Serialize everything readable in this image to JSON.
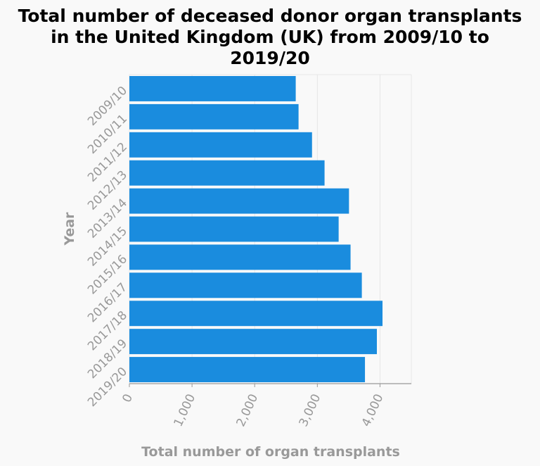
{
  "chart_data": {
    "type": "bar",
    "orientation": "horizontal",
    "title_lines": [
      "Total number of deceased donor organ transplants",
      "in the United Kingdom (UK) from 2009/10 to",
      "2019/20"
    ],
    "xlabel": "Total number of organ transplants",
    "ylabel": "Year",
    "categories": [
      "2009/10",
      "2010/11",
      "2011/12",
      "2012/13",
      "2013/14",
      "2014/15",
      "2015/16",
      "2016/17",
      "2017/18",
      "2018/19",
      "2019/20"
    ],
    "values": [
      2655,
      2700,
      2915,
      3115,
      3505,
      3340,
      3530,
      3710,
      4040,
      3950,
      3760
    ],
    "xlim": [
      0,
      4500
    ],
    "xticks": [
      0,
      1000,
      2000,
      3000,
      4000
    ],
    "xtick_labels": [
      "0",
      "1,000",
      "2,000",
      "3,000",
      "4,000"
    ],
    "grid": true,
    "bar_color": "#1a8cde"
  }
}
